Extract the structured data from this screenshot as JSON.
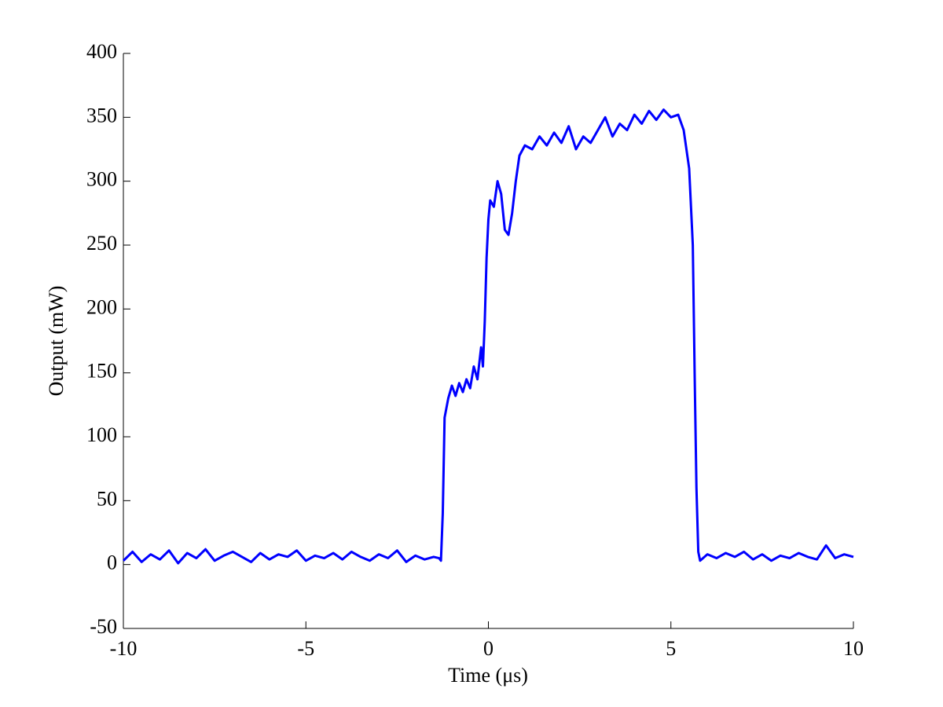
{
  "chart_data": {
    "type": "line",
    "xlabel": "Time (μs)",
    "ylabel": "Output (mW)",
    "xlim": [
      -10,
      10
    ],
    "xticks": [
      -10,
      -5,
      0,
      5,
      10
    ],
    "ylim": [
      -50,
      400
    ],
    "yticks": [
      -50,
      0,
      50,
      100,
      150,
      200,
      250,
      300,
      350,
      400
    ],
    "grid": false,
    "series": [
      {
        "color": "#0000ff",
        "x": [
          -10,
          -9.75,
          -9.5,
          -9.25,
          -9,
          -8.75,
          -8.5,
          -8.25,
          -8,
          -7.75,
          -7.5,
          -7.25,
          -7,
          -6.75,
          -6.5,
          -6.25,
          -6,
          -5.75,
          -5.5,
          -5.25,
          -5,
          -4.75,
          -4.5,
          -4.25,
          -4,
          -3.75,
          -3.5,
          -3.25,
          -3,
          -2.75,
          -2.5,
          -2.25,
          -2,
          -1.75,
          -1.5,
          -1.35,
          -1.3,
          -1.25,
          -1.2,
          -1.1,
          -1.0,
          -0.9,
          -0.8,
          -0.7,
          -0.6,
          -0.5,
          -0.4,
          -0.3,
          -0.2,
          -0.15,
          -0.1,
          -0.05,
          0,
          0.05,
          0.15,
          0.25,
          0.35,
          0.45,
          0.55,
          0.65,
          0.75,
          0.85,
          1.0,
          1.2,
          1.4,
          1.6,
          1.8,
          2.0,
          2.2,
          2.4,
          2.6,
          2.8,
          3.0,
          3.2,
          3.4,
          3.6,
          3.8,
          4.0,
          4.2,
          4.4,
          4.6,
          4.8,
          5.0,
          5.2,
          5.35,
          5.5,
          5.6,
          5.65,
          5.7,
          5.75,
          5.8,
          6,
          6.25,
          6.5,
          6.75,
          7,
          7.25,
          7.5,
          7.75,
          8,
          8.25,
          8.5,
          8.75,
          9,
          9.25,
          9.5,
          9.75,
          10
        ],
        "values": [
          3,
          10,
          2,
          8,
          4,
          11,
          1,
          9,
          5,
          12,
          3,
          7,
          10,
          6,
          2,
          9,
          4,
          8,
          6,
          11,
          3,
          7,
          5,
          9,
          4,
          10,
          6,
          3,
          8,
          5,
          11,
          2,
          7,
          4,
          6,
          5,
          3,
          40,
          115,
          130,
          140,
          132,
          142,
          135,
          145,
          138,
          155,
          145,
          170,
          155,
          190,
          240,
          270,
          285,
          280,
          300,
          290,
          262,
          258,
          275,
          300,
          320,
          328,
          325,
          335,
          328,
          338,
          330,
          343,
          325,
          335,
          330,
          340,
          350,
          335,
          345,
          340,
          352,
          345,
          355,
          348,
          356,
          350,
          352,
          340,
          310,
          250,
          150,
          60,
          10,
          3,
          8,
          5,
          9,
          6,
          10,
          4,
          8,
          3,
          7,
          5,
          9,
          6,
          4,
          15,
          5,
          8,
          6
        ]
      }
    ]
  }
}
